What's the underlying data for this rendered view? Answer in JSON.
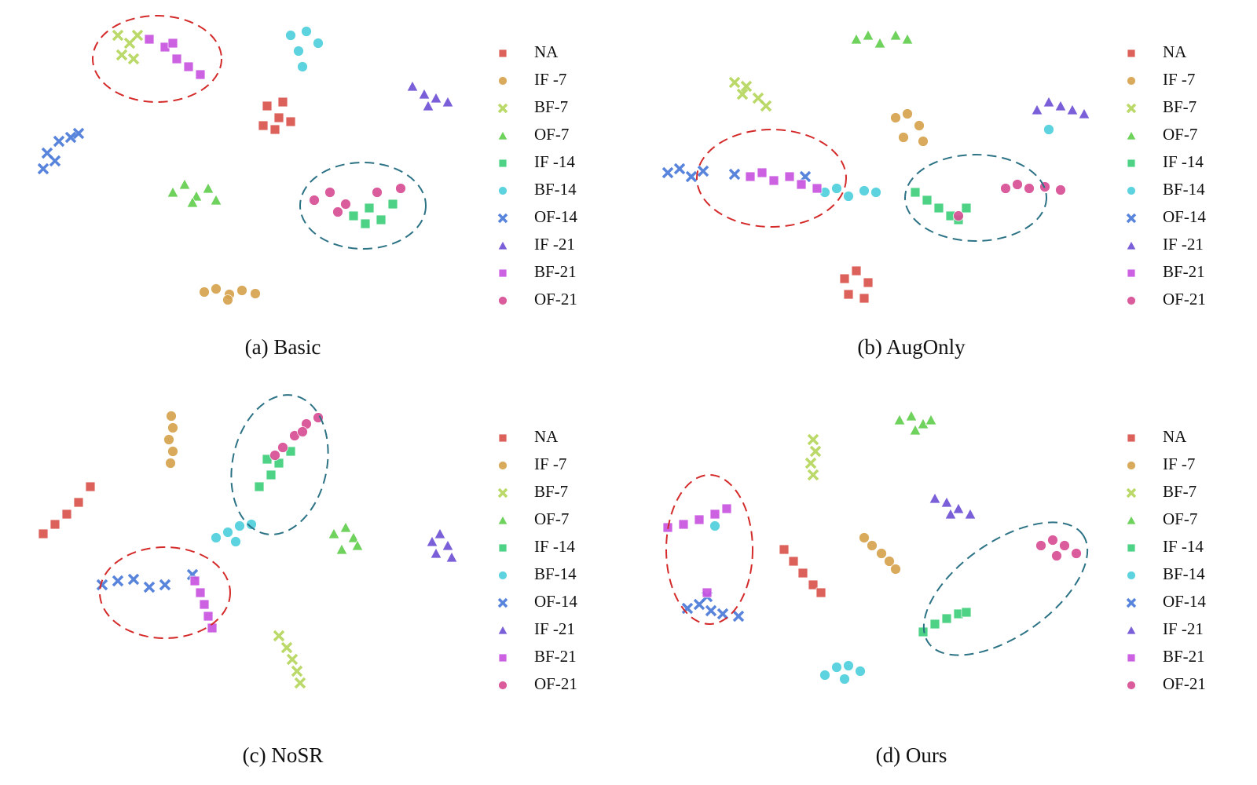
{
  "chart_data": [
    {
      "type": "scatter",
      "title": "(a) Basic",
      "xlim": [
        0,
        600
      ],
      "ylim": [
        420,
        0
      ],
      "series": [
        {
          "name": "NA",
          "color": "#d9544d",
          "marker": "square",
          "x": [
            330,
            350,
            345,
            325,
            360,
            340
          ],
          "y": [
            135,
            130,
            150,
            160,
            155,
            165
          ]
        },
        {
          "name": "IF -7",
          "color": "#d6a34e",
          "marker": "circle",
          "x": [
            250,
            265,
            282,
            298,
            315,
            280
          ],
          "y": [
            372,
            368,
            375,
            370,
            374,
            382
          ]
        },
        {
          "name": "BF-7",
          "color": "#b4d65c",
          "marker": "x",
          "x": [
            140,
            155,
            145,
            165,
            160
          ],
          "y": [
            45,
            55,
            70,
            45,
            75
          ]
        },
        {
          "name": "OF-7",
          "color": "#62cf4f",
          "marker": "triangle",
          "x": [
            210,
            225,
            240,
            255,
            265,
            235
          ],
          "y": [
            245,
            235,
            250,
            240,
            255,
            258
          ]
        },
        {
          "name": "IF -14",
          "color": "#3fcf7b",
          "marker": "square",
          "x": [
            440,
            460,
            475,
            490,
            455
          ],
          "y": [
            275,
            265,
            280,
            260,
            285
          ]
        },
        {
          "name": "BF-14",
          "color": "#4fd0dc",
          "marker": "circle",
          "x": [
            360,
            380,
            395,
            370,
            375
          ],
          "y": [
            45,
            40,
            55,
            65,
            85
          ]
        },
        {
          "name": "OF-14",
          "color": "#4a7ad8",
          "marker": "x",
          "x": [
            50,
            65,
            80,
            60,
            90,
            45
          ],
          "y": [
            195,
            180,
            175,
            205,
            170,
            215
          ]
        },
        {
          "name": "IF -21",
          "color": "#6f52d6",
          "marker": "triangle",
          "x": [
            515,
            530,
            545,
            560,
            535
          ],
          "y": [
            110,
            120,
            125,
            130,
            135
          ]
        },
        {
          "name": "BF-21",
          "color": "#c855e0",
          "marker": "square",
          "x": [
            180,
            200,
            215,
            230,
            245,
            210
          ],
          "y": [
            50,
            60,
            75,
            85,
            95,
            55
          ]
        },
        {
          "name": "OF-21",
          "color": "#d94f94",
          "marker": "circle",
          "x": [
            390,
            410,
            430,
            470,
            500,
            420
          ],
          "y": [
            255,
            245,
            260,
            245,
            240,
            270
          ]
        }
      ]
    },
    {
      "type": "scatter",
      "title": "(b) AugOnly",
      "xlim": [
        0,
        600
      ],
      "ylim": [
        420,
        0
      ],
      "series": [
        {
          "name": "NA",
          "color": "#d9544d",
          "marker": "square",
          "x": [
            265,
            280,
            295,
            270,
            290
          ],
          "y": [
            355,
            345,
            360,
            375,
            380
          ]
        },
        {
          "name": "IF -7",
          "color": "#d6a34e",
          "marker": "circle",
          "x": [
            330,
            345,
            360,
            340,
            365
          ],
          "y": [
            150,
            145,
            160,
            175,
            180
          ]
        },
        {
          "name": "BF-7",
          "color": "#b4d65c",
          "marker": "x",
          "x": [
            125,
            140,
            155,
            165,
            135
          ],
          "y": [
            105,
            110,
            125,
            135,
            120
          ]
        },
        {
          "name": "OF-7",
          "color": "#62cf4f",
          "marker": "triangle",
          "x": [
            280,
            295,
            310,
            330,
            345
          ],
          "y": [
            50,
            45,
            55,
            45,
            50
          ]
        },
        {
          "name": "IF -14",
          "color": "#3fcf7b",
          "marker": "square",
          "x": [
            355,
            370,
            385,
            400,
            420,
            410
          ],
          "y": [
            245,
            255,
            265,
            275,
            265,
            280
          ]
        },
        {
          "name": "BF-14",
          "color": "#4fd0dc",
          "marker": "circle",
          "x": [
            240,
            255,
            270,
            290,
            305,
            525
          ],
          "y": [
            245,
            240,
            250,
            243,
            245,
            165
          ]
        },
        {
          "name": "OF-14",
          "color": "#4a7ad8",
          "marker": "x",
          "x": [
            40,
            55,
            70,
            85,
            125,
            215
          ],
          "y": [
            220,
            215,
            225,
            218,
            222,
            225
          ]
        },
        {
          "name": "IF -21",
          "color": "#6f52d6",
          "marker": "triangle",
          "x": [
            510,
            525,
            540,
            555,
            570
          ],
          "y": [
            140,
            130,
            135,
            140,
            145
          ]
        },
        {
          "name": "BF-21",
          "color": "#c855e0",
          "marker": "square",
          "x": [
            145,
            160,
            175,
            195,
            210,
            230
          ],
          "y": [
            225,
            220,
            230,
            225,
            235,
            240
          ]
        },
        {
          "name": "OF-21",
          "color": "#d94f94",
          "marker": "circle",
          "x": [
            470,
            485,
            500,
            520,
            540,
            410
          ],
          "y": [
            240,
            235,
            240,
            238,
            242,
            275
          ]
        }
      ]
    },
    {
      "type": "scatter",
      "title": "(c) NoSR",
      "xlim": [
        0,
        600
      ],
      "ylim": [
        420,
        0
      ],
      "series": [
        {
          "name": "NA",
          "color": "#d9544d",
          "marker": "square",
          "x": [
            45,
            60,
            75,
            90,
            105
          ],
          "y": [
            190,
            178,
            165,
            150,
            130
          ]
        },
        {
          "name": "IF -7",
          "color": "#d6a34e",
          "marker": "circle",
          "x": [
            208,
            210,
            205,
            210,
            207
          ],
          "y": [
            40,
            55,
            70,
            85,
            100
          ]
        },
        {
          "name": "BF-7",
          "color": "#b4d65c",
          "marker": "x",
          "x": [
            345,
            355,
            362,
            368,
            372
          ],
          "y": [
            320,
            335,
            350,
            365,
            380
          ]
        },
        {
          "name": "OF-7",
          "color": "#62cf4f",
          "marker": "triangle",
          "x": [
            415,
            430,
            440,
            425,
            445
          ],
          "y": [
            190,
            182,
            195,
            210,
            205
          ]
        },
        {
          "name": "IF -14",
          "color": "#3fcf7b",
          "marker": "square",
          "x": [
            320,
            335,
            345,
            360,
            330
          ],
          "y": [
            130,
            115,
            100,
            85,
            95
          ]
        },
        {
          "name": "BF-14",
          "color": "#4fd0dc",
          "marker": "circle",
          "x": [
            265,
            280,
            295,
            310,
            290
          ],
          "y": [
            195,
            188,
            180,
            178,
            200
          ]
        },
        {
          "name": "OF-14",
          "color": "#4a7ad8",
          "marker": "x",
          "x": [
            120,
            140,
            160,
            180,
            200,
            235
          ],
          "y": [
            255,
            250,
            248,
            258,
            255,
            242
          ]
        },
        {
          "name": "IF -21",
          "color": "#6f52d6",
          "marker": "triangle",
          "x": [
            540,
            550,
            560,
            565,
            545
          ],
          "y": [
            200,
            190,
            205,
            220,
            215
          ]
        },
        {
          "name": "BF-21",
          "color": "#c855e0",
          "marker": "square",
          "x": [
            238,
            245,
            250,
            255,
            260
          ],
          "y": [
            250,
            265,
            280,
            295,
            310
          ]
        },
        {
          "name": "OF-21",
          "color": "#d94f94",
          "marker": "circle",
          "x": [
            350,
            365,
            380,
            395,
            375,
            340
          ],
          "y": [
            80,
            65,
            50,
            42,
            60,
            90
          ]
        }
      ]
    },
    {
      "type": "scatter",
      "title": "(d) Ours",
      "xlim": [
        0,
        600
      ],
      "ylim": [
        420,
        0
      ],
      "series": [
        {
          "name": "NA",
          "color": "#d9544d",
          "marker": "square",
          "x": [
            188,
            200,
            212,
            225,
            235
          ],
          "y": [
            210,
            225,
            240,
            255,
            265
          ]
        },
        {
          "name": "IF -7",
          "color": "#d6a34e",
          "marker": "circle",
          "x": [
            290,
            300,
            312,
            322,
            330
          ],
          "y": [
            195,
            205,
            215,
            225,
            235
          ]
        },
        {
          "name": "BF-7",
          "color": "#b4d65c",
          "marker": "x",
          "x": [
            225,
            228,
            222,
            225
          ],
          "y": [
            70,
            85,
            100,
            115
          ]
        },
        {
          "name": "OF-7",
          "color": "#62cf4f",
          "marker": "triangle",
          "x": [
            335,
            350,
            365,
            375,
            355
          ],
          "y": [
            45,
            40,
            50,
            45,
            58
          ]
        },
        {
          "name": "IF -14",
          "color": "#3fcf7b",
          "marker": "square",
          "x": [
            365,
            380,
            395,
            410,
            420
          ],
          "y": [
            315,
            305,
            298,
            292,
            290
          ]
        },
        {
          "name": "BF-14",
          "color": "#4fd0dc",
          "marker": "circle",
          "x": [
            240,
            255,
            270,
            285,
            265,
            100
          ],
          "y": [
            370,
            360,
            358,
            365,
            375,
            180
          ]
        },
        {
          "name": "OF-14",
          "color": "#4a7ad8",
          "marker": "x",
          "x": [
            65,
            80,
            95,
            110,
            130,
            90
          ],
          "y": [
            285,
            280,
            288,
            292,
            295,
            270
          ]
        },
        {
          "name": "IF -21",
          "color": "#6f52d6",
          "marker": "triangle",
          "x": [
            380,
            395,
            410,
            425,
            400
          ],
          "y": [
            145,
            150,
            158,
            165,
            165
          ]
        },
        {
          "name": "BF-21",
          "color": "#c855e0",
          "marker": "square",
          "x": [
            40,
            60,
            80,
            100,
            115,
            90
          ],
          "y": [
            182,
            178,
            172,
            165,
            158,
            265
          ]
        },
        {
          "name": "OF-21",
          "color": "#d94f94",
          "marker": "circle",
          "x": [
            515,
            530,
            545,
            560,
            535
          ],
          "y": [
            205,
            198,
            205,
            215,
            218
          ]
        }
      ]
    }
  ]
}
